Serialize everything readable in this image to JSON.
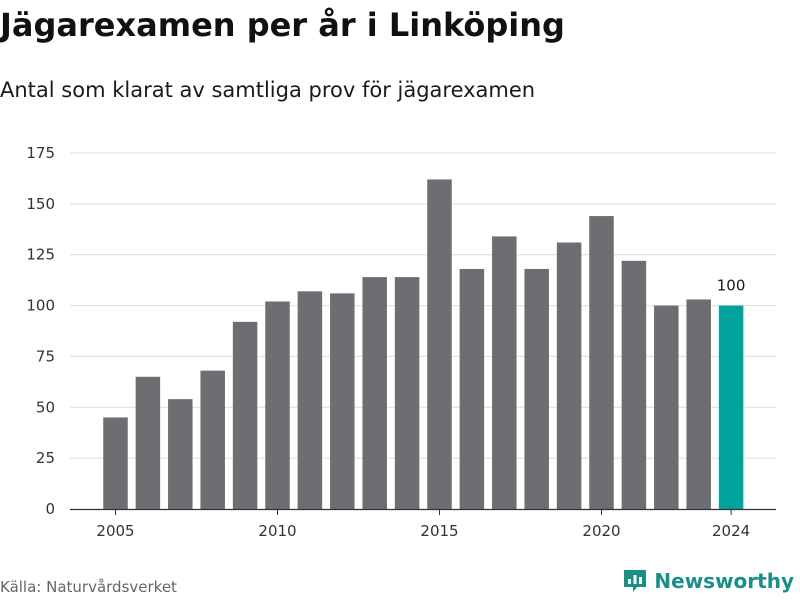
{
  "title": "Jägarexamen per år i Linköping",
  "subtitle": "Antal som klarat av samtliga prov för jägarexamen",
  "source": "Källa: Naturvårdsverket",
  "brand": {
    "name": "Newsworthy",
    "icon": "newsworthy-logo-icon",
    "color": "#1a8f87"
  },
  "chart_data": {
    "type": "bar",
    "x": [
      2005,
      2006,
      2007,
      2008,
      2009,
      2010,
      2011,
      2012,
      2013,
      2014,
      2015,
      2016,
      2017,
      2018,
      2019,
      2020,
      2021,
      2022,
      2023,
      2024
    ],
    "values": [
      45,
      65,
      54,
      68,
      92,
      102,
      107,
      106,
      114,
      114,
      162,
      118,
      134,
      118,
      131,
      144,
      122,
      100,
      103,
      100
    ],
    "highlight_index": 19,
    "highlight_label": "100",
    "x_ticks": [
      "2005",
      "2010",
      "2015",
      "2020",
      "2024"
    ],
    "y_ticks": [
      "0",
      "25",
      "50",
      "75",
      "100",
      "125",
      "150",
      "175"
    ],
    "ylim": [
      0,
      175
    ],
    "grid": true,
    "bar_color": "#6e6d72",
    "highlight_color": "#00a39b",
    "xlabel": "",
    "ylabel": ""
  }
}
